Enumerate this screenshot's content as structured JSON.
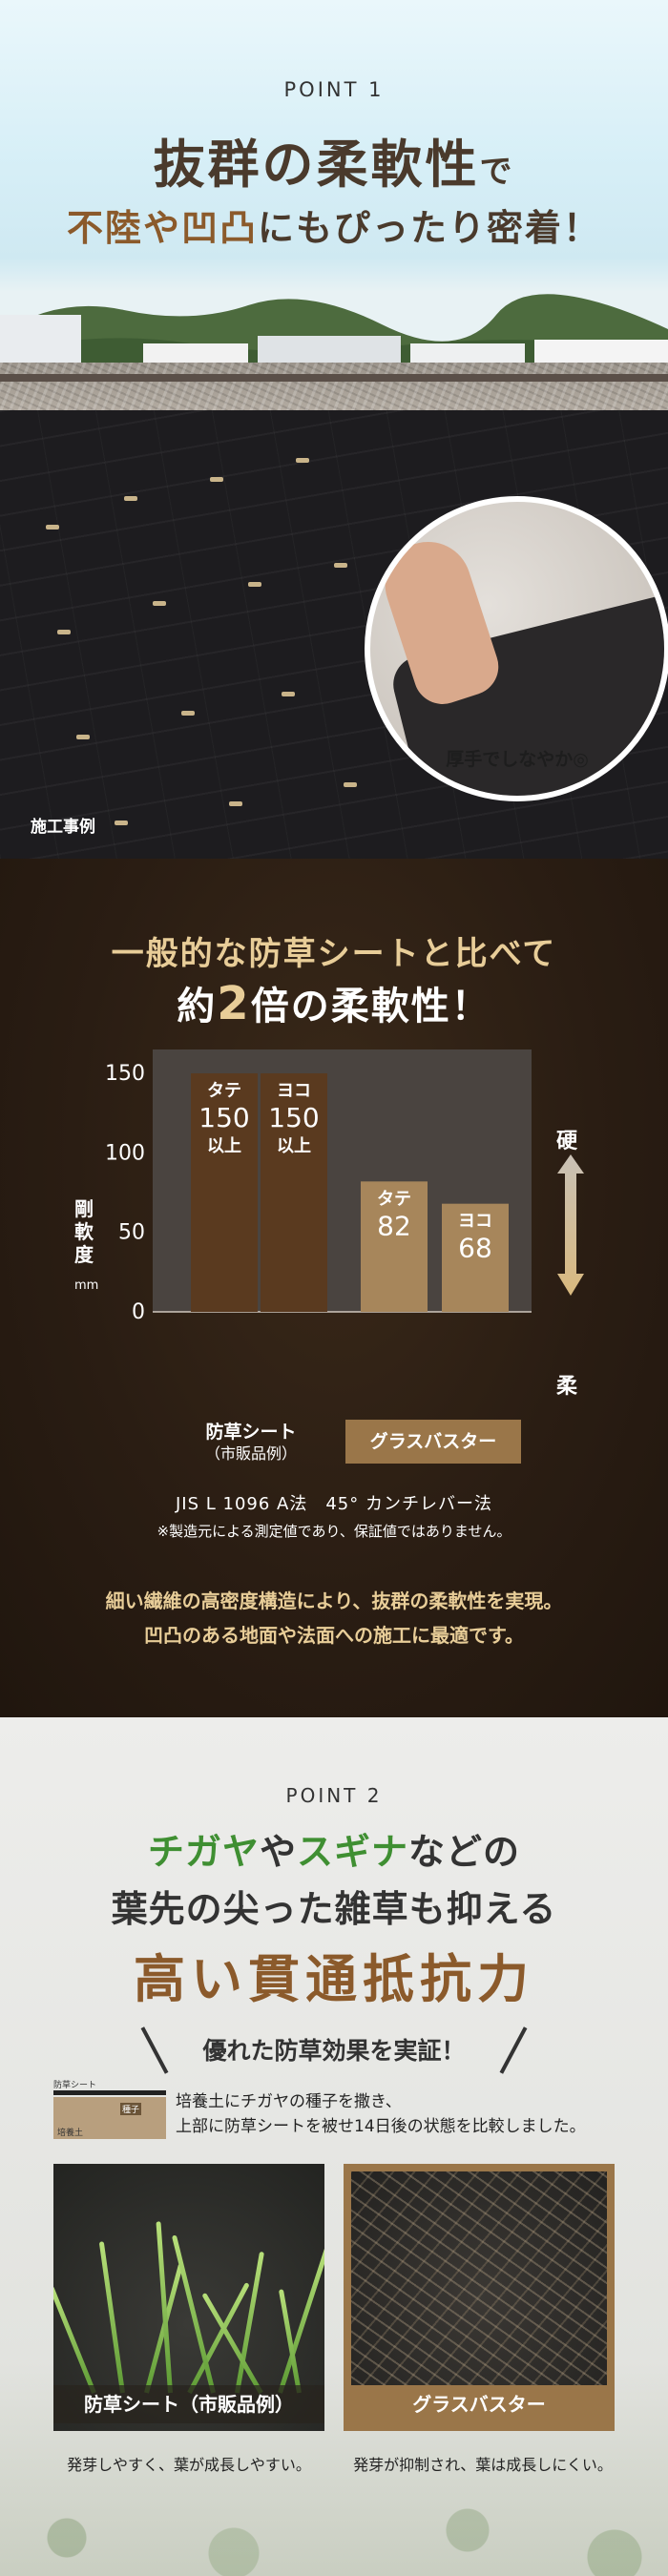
{
  "point1": {
    "label": "POINT 1",
    "headline_main": "抜群の柔軟性",
    "headline_suffix": "で",
    "subhead_part1": "不陸や凹凸",
    "subhead_part2": "にもぴったり密着！",
    "zoom_caption": "厚手でしなやか◎",
    "photo_caption": "施工事例"
  },
  "comparison": {
    "title_line1": "一般的な防草シートと比べて",
    "title_prefix": "約",
    "title_number": "2",
    "title_suffix": "倍の柔軟性！",
    "ylabel": "剛軟度",
    "yunit": "mm",
    "hard_label": "硬",
    "soft_label": "柔",
    "category1": "防草シート",
    "category1_sub": "（市販品例）",
    "category2": "グラスバスター",
    "method": "JIS L 1096 A法　45° カンチレバー法",
    "note": "※製造元による測定値であり、保証値ではありません。",
    "body_line1": "細い繊維の高密度構造により、抜群の柔軟性を実現。",
    "body_line2": "凹凸のある地面や法面への施工に最適です。",
    "colors": {
      "commercial": "#5a3a1f",
      "grassbuster": "#a7865b",
      "accent": "#e8cd98"
    }
  },
  "chart_data": {
    "type": "bar",
    "categories": [
      "防草シート（市販品例）",
      "グラスバスター"
    ],
    "series": [
      {
        "name": "タテ",
        "values": [
          150,
          82
        ],
        "labels": [
          "150",
          "82"
        ],
        "sublabels": [
          "以上",
          ""
        ]
      },
      {
        "name": "ヨコ",
        "values": [
          150,
          68
        ],
        "labels": [
          "150",
          "68"
        ],
        "sublabels": [
          "以上",
          ""
        ]
      }
    ],
    "yticks": [
      0,
      50,
      100,
      150
    ],
    "ylim": [
      0,
      165
    ],
    "ylabel": "剛軟度 mm",
    "grid": false
  },
  "point2": {
    "label": "POINT 2",
    "line1_green1": "チガヤ",
    "line1_mid": "や",
    "line1_green2": "スギナ",
    "line1_end": "などの",
    "line2": "葉先の尖った雑草も抑える",
    "line3": "高い貫通抵抗力",
    "proof": "優れた防草効果を実証！",
    "diagram_sheet": "防草シート",
    "diagram_seed": "種子",
    "diagram_soil": "培養土",
    "desc_line1": "培養土にチガヤの種子を撒き、",
    "desc_line2": "上部に防草シートを被せ14日後の状態を比較しました。",
    "photo_left_caption": "防草シート（市販品例）",
    "photo_right_caption": "グラスバスター",
    "result_left": "発芽しやすく、葉が成長しやすい。",
    "result_right": "発芽が抑制され、葉は成長しにくい。"
  }
}
